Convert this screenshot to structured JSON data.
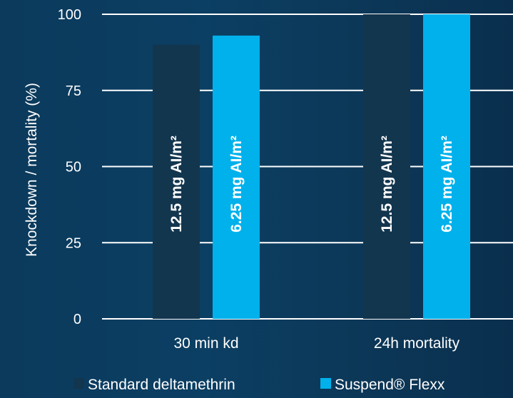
{
  "chart_data": {
    "type": "bar",
    "ylabel": "Knockdown / mortality (%)",
    "ylim": [
      0,
      100
    ],
    "yticks": [
      0,
      25,
      50,
      75,
      100
    ],
    "grid": true,
    "legend_position": "bottom",
    "categories": [
      "30 min kd",
      "24h mortality"
    ],
    "series": [
      {
        "name": "Standard deltamethrin",
        "color": "#13364f",
        "values": [
          90,
          100
        ],
        "labels": [
          "12.5 mg AI/m²",
          "12.5 mg AI/m²"
        ]
      },
      {
        "name": "Suspend® Flexx",
        "color": "#00b1eb",
        "values": [
          93,
          100
        ],
        "labels": [
          "6.25 mg AI/m²",
          "6.25 mg AI/m²"
        ]
      }
    ]
  }
}
